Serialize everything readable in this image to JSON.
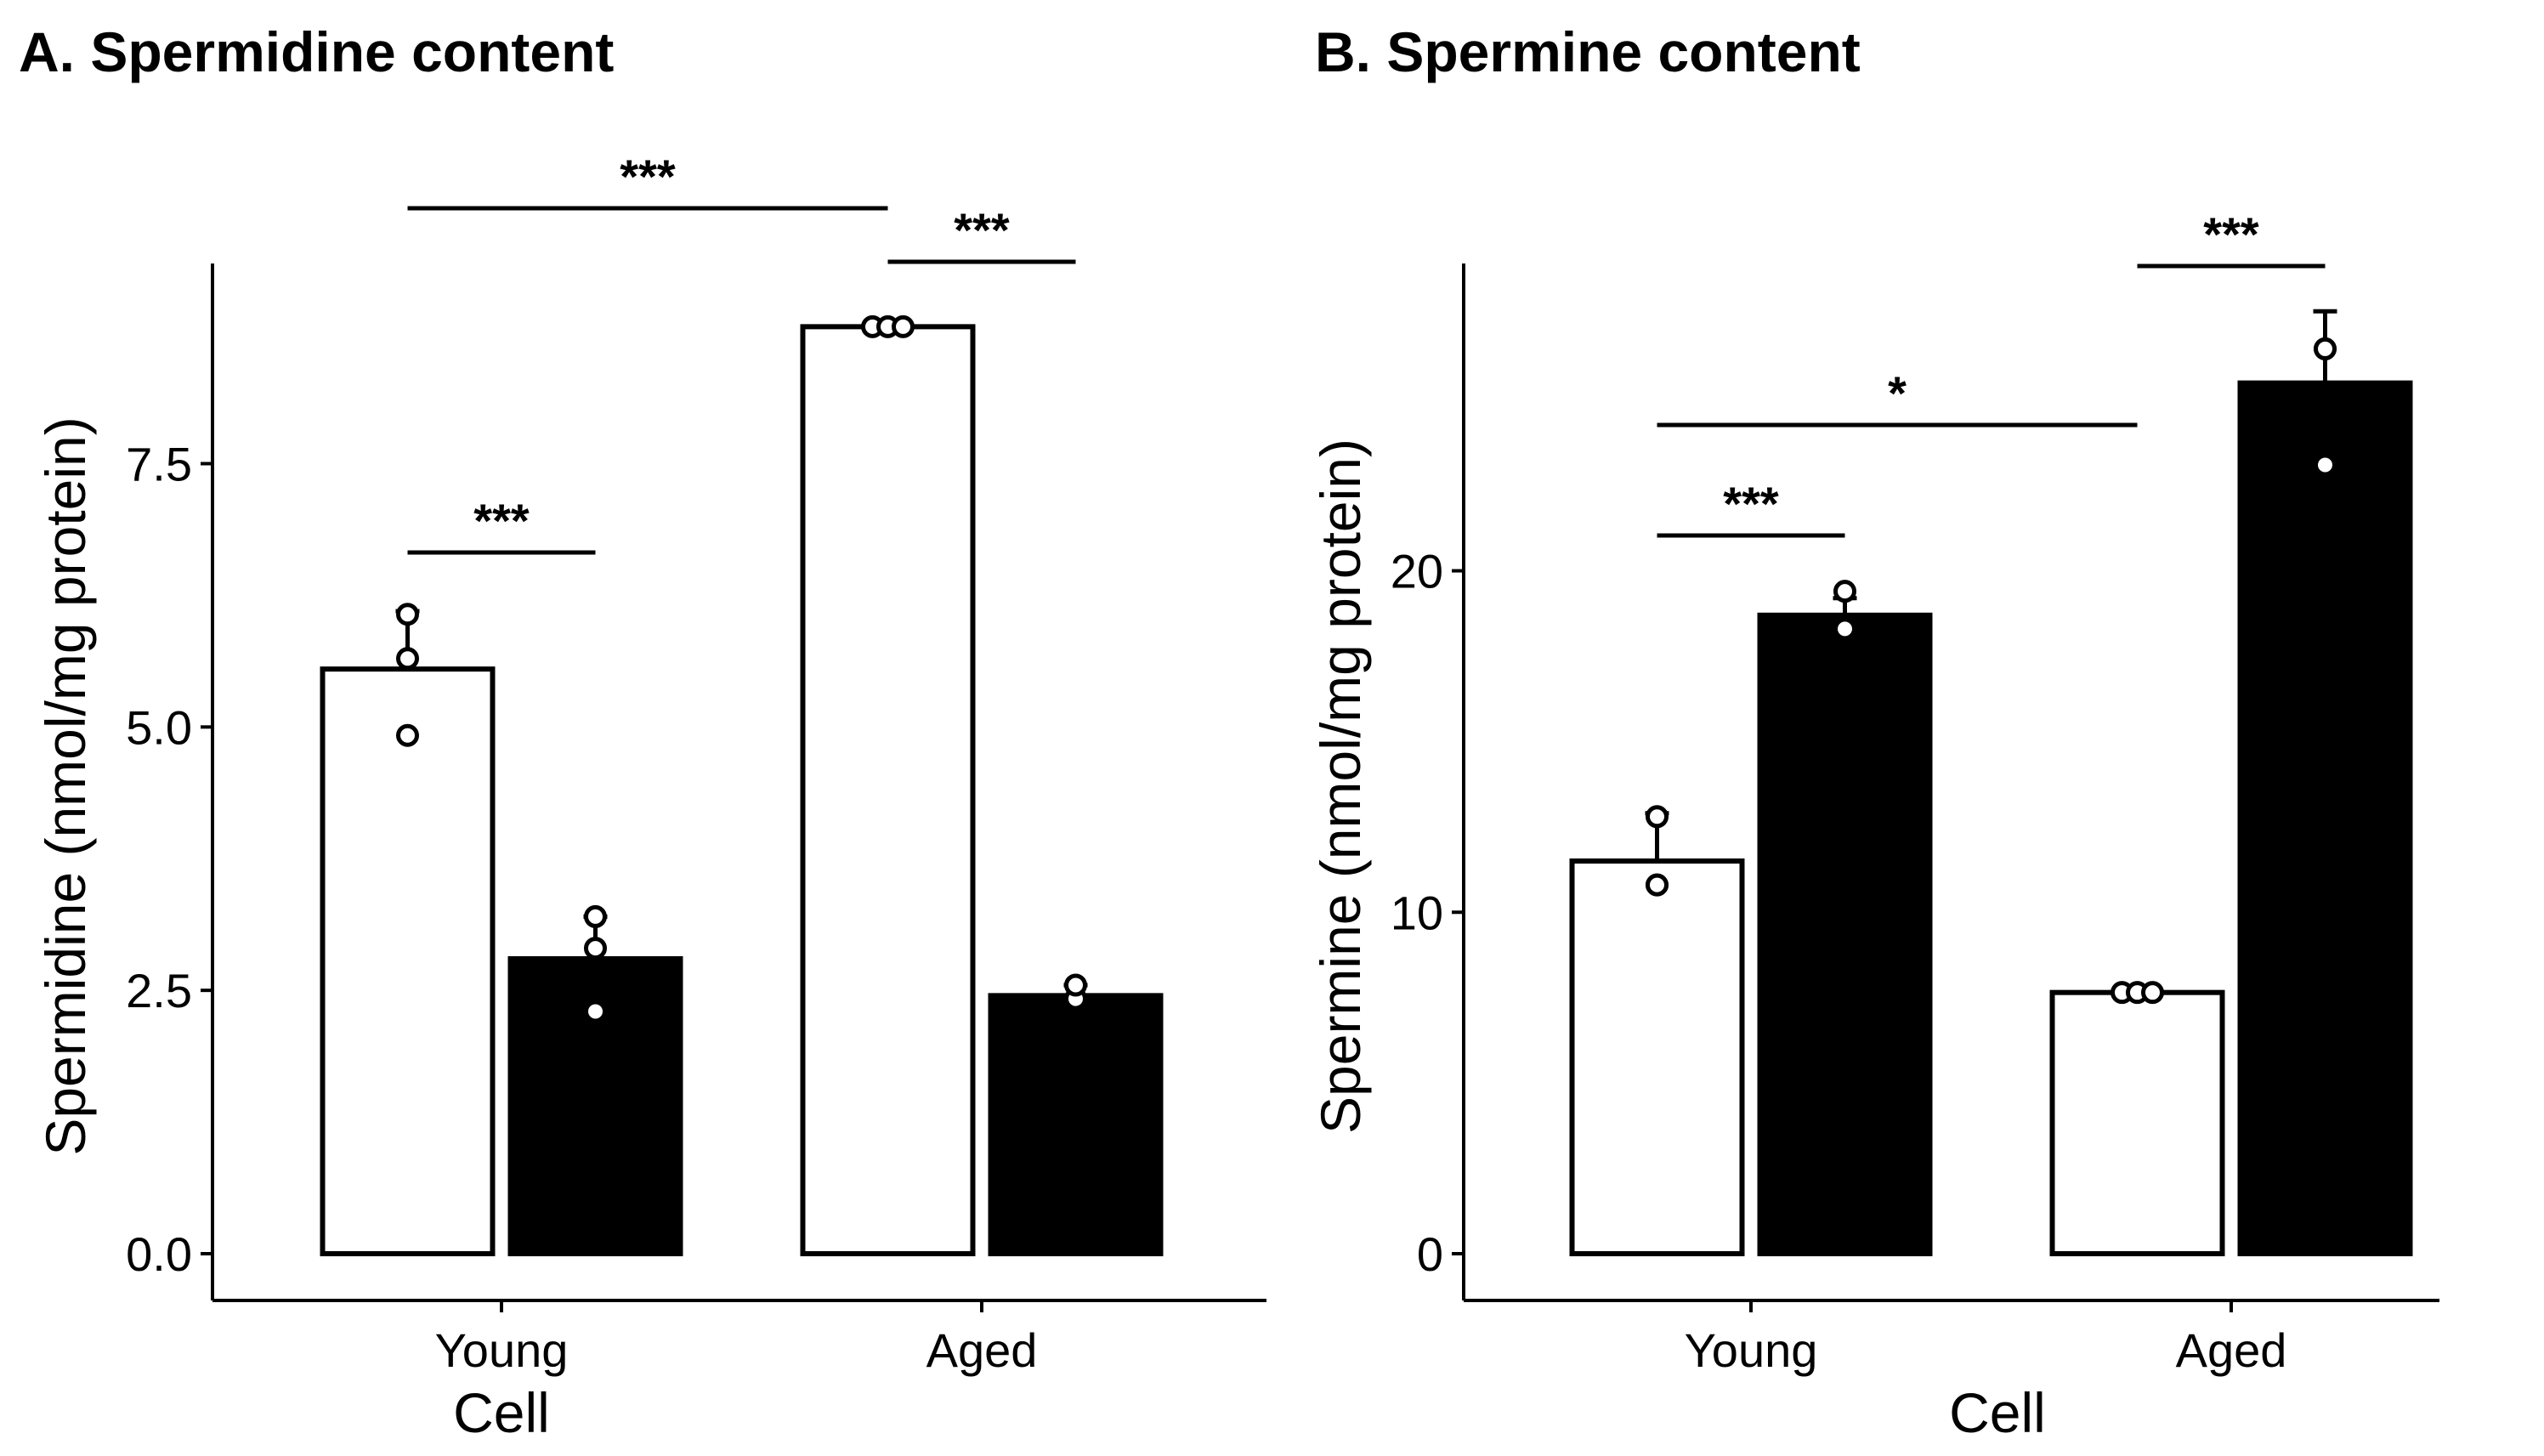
{
  "chart_data": [
    {
      "type": "bar",
      "title": "A. Spermidine content",
      "xlabel": "Cell",
      "ylabel": "Spermidine (nmol/mg protein)",
      "ylim": [
        0,
        9.4
      ],
      "yticks": [
        "0.0",
        "2.5",
        "5.0",
        "7.5"
      ],
      "ytick_values": [
        0,
        2.5,
        5.0,
        7.5
      ],
      "categories": [
        "Young",
        "Aged"
      ],
      "series": [
        {
          "fill": "#ffffff",
          "values": [
            5.55,
            8.8
          ],
          "error": [
            0.55,
            0.0
          ],
          "points": [
            [
              4.92,
              5.65,
              6.07
            ],
            [
              8.8,
              8.8,
              8.8
            ]
          ]
        },
        {
          "fill": "#000000",
          "values": [
            2.8,
            2.45
          ],
          "error": [
            0.4,
            0.1
          ],
          "points": [
            [
              2.3,
              2.9,
              3.2
            ],
            [
              2.42,
              2.42,
              2.55
            ]
          ]
        }
      ],
      "significance": [
        {
          "label": "***",
          "from": [
            0,
            0
          ],
          "to": [
            0,
            1
          ]
        },
        {
          "label": "***",
          "from": [
            0,
            0
          ],
          "to": [
            1,
            0
          ]
        },
        {
          "label": "***",
          "from": [
            1,
            0
          ],
          "to": [
            1,
            1
          ]
        }
      ],
      "grid": false,
      "legend": "none"
    },
    {
      "type": "bar",
      "title": "B. Spermine content",
      "xlabel": "Cell",
      "ylabel": "Spermine (nmol/mg protein)",
      "ylim": [
        0,
        29
      ],
      "yticks": [
        "0",
        "10",
        "20"
      ],
      "ytick_values": [
        0,
        10,
        20
      ],
      "categories": [
        "Young",
        "Aged"
      ],
      "series": [
        {
          "fill": "#ffffff",
          "values": [
            11.5,
            7.65
          ],
          "error": [
            1.4,
            0.0
          ],
          "points": [
            [
              10.8,
              10.8,
              12.8
            ],
            [
              7.65,
              7.65,
              7.65
            ]
          ]
        },
        {
          "fill": "#000000",
          "values": [
            18.7,
            25.5
          ],
          "error": [
            0.5,
            2.1
          ],
          "points": [
            [
              18.3,
              18.3,
              19.4
            ],
            [
              23.1,
              26.5,
              26.5
            ]
          ]
        }
      ],
      "significance": [
        {
          "label": "***",
          "from": [
            0,
            0
          ],
          "to": [
            0,
            1
          ]
        },
        {
          "label": "*",
          "from": [
            0,
            0
          ],
          "to": [
            1,
            0
          ]
        },
        {
          "label": "***",
          "from": [
            1,
            0
          ],
          "to": [
            1,
            1
          ]
        }
      ],
      "grid": false,
      "legend": "none"
    }
  ]
}
